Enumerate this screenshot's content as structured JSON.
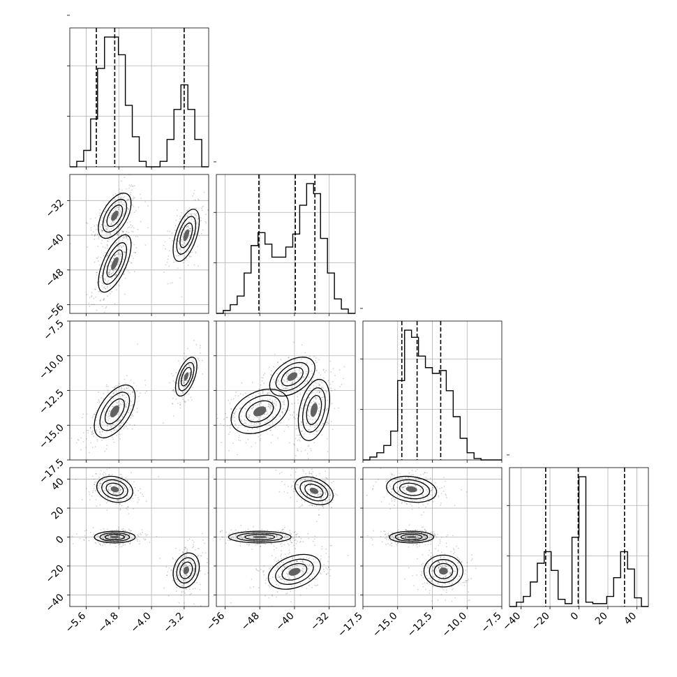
{
  "chart_data": {
    "type": "corner",
    "title": "",
    "grid": true,
    "params": [
      {
        "xlabel": "",
        "range": [
          -6.0,
          -2.6
        ],
        "ticks": [
          -5.6,
          -4.8,
          -4.0,
          -3.2
        ],
        "tick_labels": [
          "−5.6",
          "−4.8",
          "−4.0",
          "−3.2"
        ]
      },
      {
        "xlabel": "",
        "range": [
          -58,
          -26
        ],
        "ticks": [
          -56,
          -48,
          -40,
          -32
        ],
        "tick_labels": [
          "−56",
          "−48",
          "−40",
          "−32"
        ]
      },
      {
        "xlabel": "",
        "range": [
          -17.5,
          -7.5
        ],
        "ticks": [
          -17.5,
          -15.0,
          -12.5,
          -10.0,
          -7.5
        ],
        "tick_labels": [
          "−17.5",
          "−15.0",
          "−12.5",
          "−10.0",
          "−7.5"
        ]
      },
      {
        "xlabel": "",
        "range": [
          -48,
          48
        ],
        "ticks": [
          -40,
          -20,
          0,
          20,
          40
        ],
        "tick_labels": [
          "−40",
          "−20",
          "0",
          "20",
          "40"
        ]
      }
    ],
    "histograms": [
      {
        "param": 0,
        "bin_edges": [
          -6.0,
          -5.83,
          -5.66,
          -5.49,
          -5.32,
          -5.15,
          -4.98,
          -4.81,
          -4.64,
          -4.47,
          -4.3,
          -4.13,
          -3.96,
          -3.79,
          -3.62,
          -3.45,
          -3.28,
          -3.11,
          -2.94,
          -2.77,
          -2.6
        ],
        "counts": [
          0.0,
          0.04,
          0.12,
          0.35,
          0.72,
          0.95,
          0.95,
          0.82,
          0.45,
          0.22,
          0.04,
          0.0,
          0.0,
          0.04,
          0.2,
          0.42,
          0.6,
          0.42,
          0.2,
          0.0
        ],
        "quantiles": [
          -5.35,
          -4.9,
          -3.2
        ]
      },
      {
        "param": 1,
        "bin_edges": [
          -58.0,
          -56.4,
          -54.8,
          -53.2,
          -51.6,
          -50.0,
          -48.4,
          -46.8,
          -45.2,
          -43.6,
          -42.0,
          -40.4,
          -38.8,
          -37.2,
          -35.6,
          -34.0,
          -32.4,
          -30.8,
          -29.2,
          -27.6,
          -26.0
        ],
        "counts": [
          0.0,
          0.02,
          0.06,
          0.12,
          0.28,
          0.47,
          0.56,
          0.48,
          0.39,
          0.39,
          0.46,
          0.55,
          0.75,
          0.9,
          0.83,
          0.52,
          0.28,
          0.1,
          0.03,
          0.0
        ],
        "quantiles": [
          -48.2,
          -39.8,
          -35.3
        ]
      },
      {
        "param": 2,
        "bin_edges": [
          -17.5,
          -17.0,
          -16.5,
          -16.0,
          -15.5,
          -15.0,
          -14.5,
          -14.0,
          -13.5,
          -13.0,
          -12.5,
          -12.0,
          -11.5,
          -11.0,
          -10.5,
          -10.0,
          -9.5,
          -9.0,
          -8.5,
          -8.0,
          -7.5
        ],
        "counts": [
          0.0,
          0.02,
          0.05,
          0.1,
          0.2,
          0.55,
          0.9,
          0.85,
          0.72,
          0.64,
          0.6,
          0.62,
          0.48,
          0.3,
          0.15,
          0.05,
          0.01,
          0.0,
          0.0,
          0.0
        ],
        "quantiles": [
          -14.7,
          -13.6,
          -11.9
        ]
      },
      {
        "param": 3,
        "bin_edges": [
          -48.0,
          -43.2,
          -38.4,
          -33.6,
          -28.8,
          -24.0,
          -19.2,
          -14.4,
          -9.6,
          -4.8,
          0.0,
          4.8,
          9.6,
          14.4,
          19.2,
          24.0,
          28.8,
          33.6,
          38.4,
          43.2,
          48.0
        ],
        "counts": [
          0.0,
          0.03,
          0.07,
          0.17,
          0.3,
          0.38,
          0.25,
          0.05,
          0.02,
          0.48,
          0.9,
          0.03,
          0.02,
          0.02,
          0.07,
          0.2,
          0.38,
          0.26,
          0.06,
          0.0
        ],
        "quantiles": [
          -23.0,
          -0.5,
          31.5
        ]
      }
    ],
    "pairs": [
      {
        "x_param": 0,
        "y_param": 1,
        "clusters": [
          {
            "cx": -4.9,
            "cy": -35.5,
            "sx": 0.2,
            "sy": 2.6,
            "rho": 0.55,
            "weight": 0.9
          },
          {
            "cx": -4.9,
            "cy": -46.5,
            "sx": 0.2,
            "sy": 3.3,
            "rho": 0.65,
            "weight": 1.0
          },
          {
            "cx": -3.15,
            "cy": -40.0,
            "sx": 0.16,
            "sy": 3.0,
            "rho": 0.55,
            "weight": 0.8
          }
        ]
      },
      {
        "x_param": 0,
        "y_param": 2,
        "clusters": [
          {
            "cx": -4.9,
            "cy": -14.0,
            "sx": 0.25,
            "sy": 0.95,
            "rho": 0.55,
            "weight": 1.0
          },
          {
            "cx": -3.15,
            "cy": -11.5,
            "sx": 0.13,
            "sy": 0.7,
            "rho": 0.55,
            "weight": 0.55
          }
        ]
      },
      {
        "x_param": 1,
        "y_param": 2,
        "clusters": [
          {
            "cx": -48.0,
            "cy": -14.0,
            "sx": 3.3,
            "sy": 0.8,
            "rho": 0.35,
            "weight": 1.0
          },
          {
            "cx": -40.5,
            "cy": -11.5,
            "sx": 2.6,
            "sy": 0.7,
            "rho": 0.45,
            "weight": 0.55
          },
          {
            "cx": -35.5,
            "cy": -13.9,
            "sx": 1.8,
            "sy": 1.1,
            "rho": 0.35,
            "weight": 0.8
          }
        ]
      },
      {
        "x_param": 0,
        "y_param": 3,
        "clusters": [
          {
            "cx": -4.9,
            "cy": 33.0,
            "sx": 0.22,
            "sy": 4.5,
            "rho": -0.2,
            "weight": 0.8
          },
          {
            "cx": -4.9,
            "cy": 0.0,
            "sx": 0.25,
            "sy": 2.0,
            "rho": 0.0,
            "weight": 1.0
          },
          {
            "cx": -3.15,
            "cy": -23.0,
            "sx": 0.16,
            "sy": 6.0,
            "rho": 0.2,
            "weight": 0.8
          }
        ]
      },
      {
        "x_param": 1,
        "y_param": 3,
        "clusters": [
          {
            "cx": -35.5,
            "cy": 32.0,
            "sx": 2.2,
            "sy": 4.8,
            "rho": -0.35,
            "weight": 0.8
          },
          {
            "cx": -48.0,
            "cy": 0.0,
            "sx": 3.6,
            "sy": 2.0,
            "rho": 0.0,
            "weight": 1.0
          },
          {
            "cx": -40.0,
            "cy": -24.0,
            "sx": 3.0,
            "sy": 6.0,
            "rho": 0.35,
            "weight": 0.8
          }
        ]
      },
      {
        "x_param": 2,
        "y_param": 3,
        "clusters": [
          {
            "cx": -14.0,
            "cy": 33.0,
            "sx": 0.9,
            "sy": 4.5,
            "rho": -0.2,
            "weight": 0.8
          },
          {
            "cx": -14.0,
            "cy": 0.0,
            "sx": 0.8,
            "sy": 2.0,
            "rho": 0.0,
            "weight": 1.0
          },
          {
            "cx": -11.7,
            "cy": -23.5,
            "sx": 0.7,
            "sy": 5.5,
            "rho": 0.0,
            "weight": 0.8
          }
        ]
      }
    ]
  }
}
